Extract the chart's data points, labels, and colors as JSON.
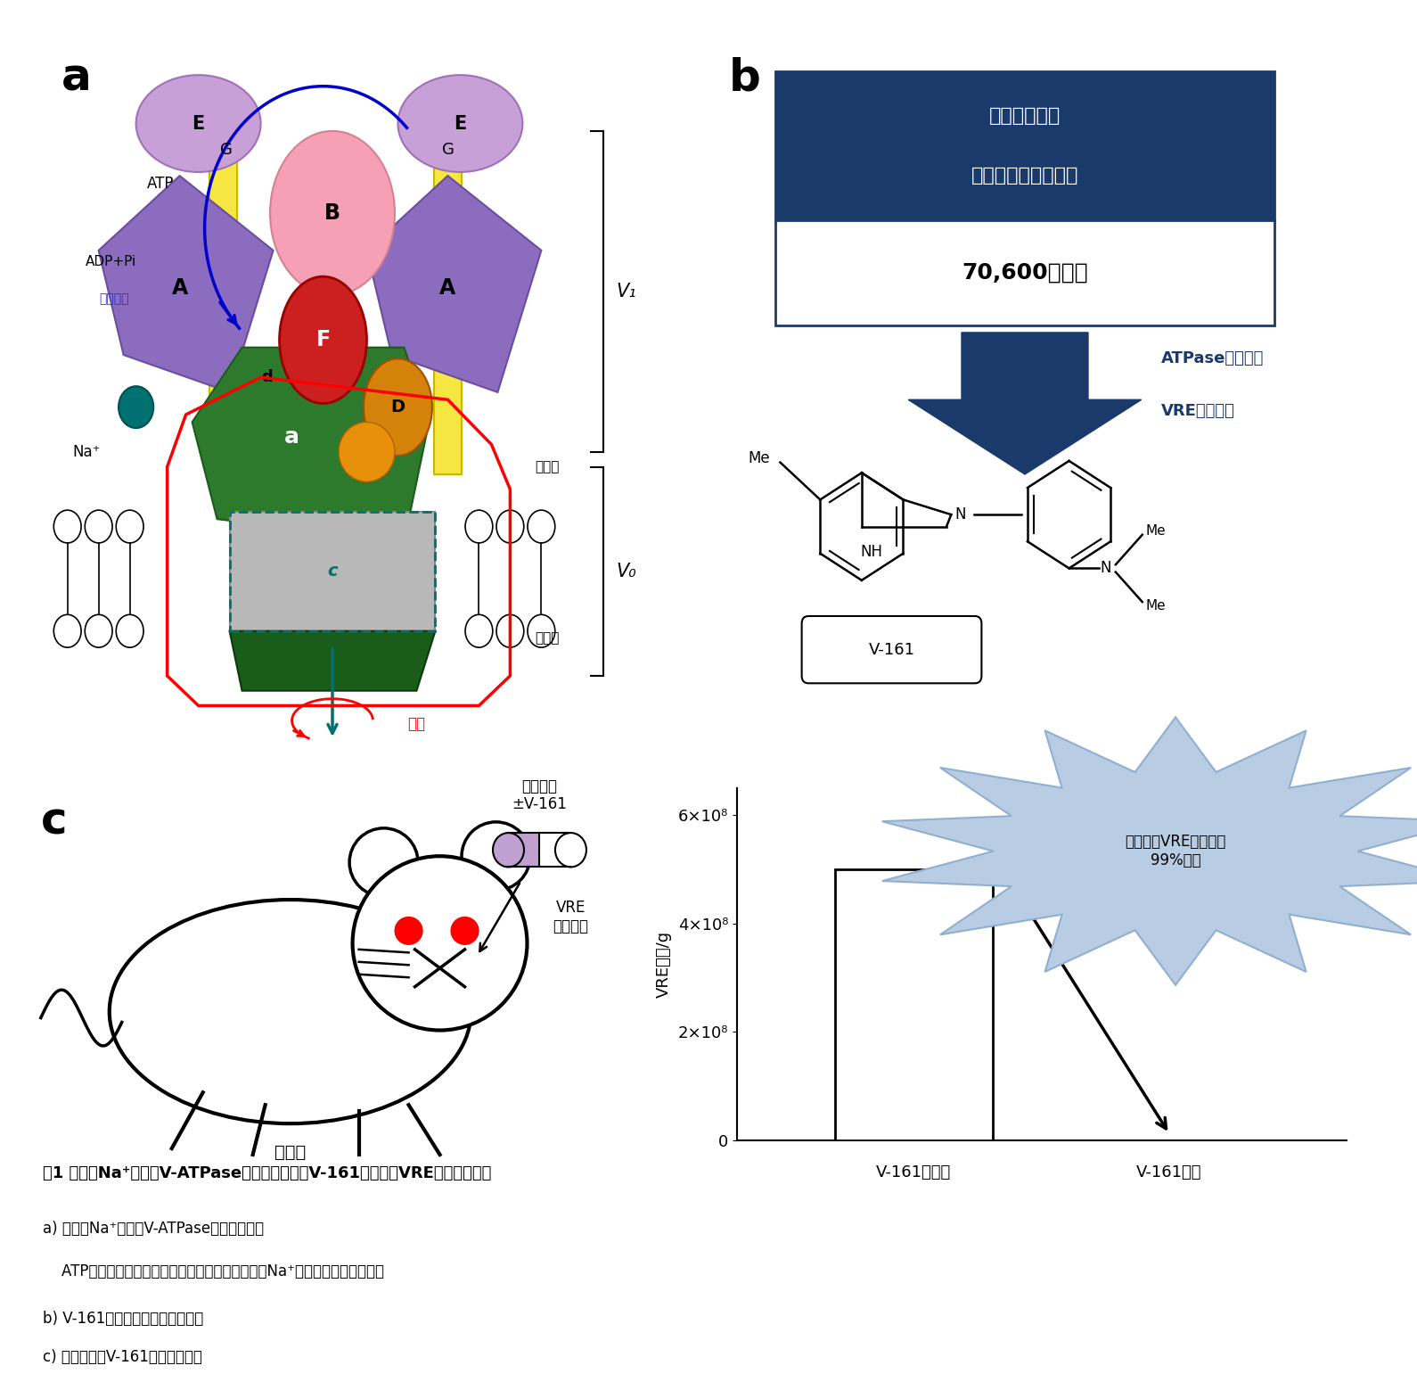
{
  "fig_width": 15.9,
  "fig_height": 15.5,
  "bg_color": "#ffffff",
  "panel_a_label": "a",
  "panel_b_label": "b",
  "panel_c_label": "c",
  "box_title_top": "東大創薬機構",
  "box_title_mid": "化合物ライブラリー",
  "box_title_bottom": "70,600化合物",
  "arrow_text_1": "ATPase活性阱害",
  "arrow_text_2": "VRE増殖阱害",
  "v161_label": "V-161",
  "bar_ylabel": "VRE菌数/g",
  "bar_xlabel_1": "V-161非投与",
  "bar_xlabel_2": "V-161投与",
  "starburst_text": "小腸でのVREの定着を\n99%阱害",
  "mouse_label": "マウス",
  "capsule_label": "カプセル\n±V-161",
  "vre_label": "VRE\n経口投与",
  "caption_bold": "囱1 腸球菌Na⁺輸送性V-ATPaseとその阱害剤「V-161」によるVRE増殖抑制効果",
  "caption_a1": "a) 腸球菌Na⁺輸送性V-ATPaseの構造モデル",
  "caption_a2": "    ATPのエネルギーにより赤で囲われた軸が回転しNa⁺が細胞外に輸送される",
  "caption_b": "b) V-161の同定とその化学構造式",
  "caption_c": "c) マウスへのV-161投与実験結果"
}
